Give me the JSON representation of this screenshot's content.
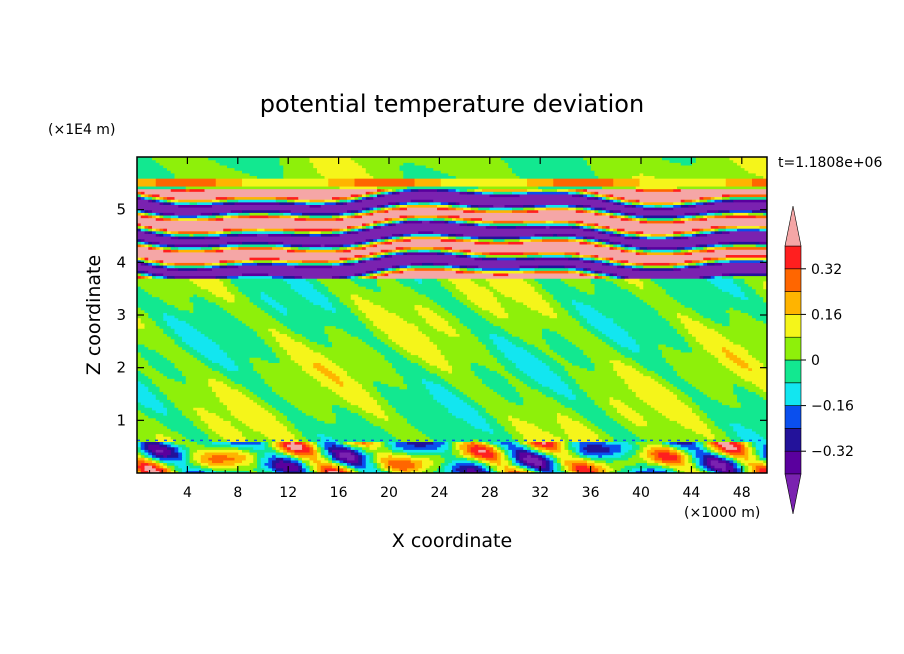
{
  "chart_data": {
    "type": "heatmap",
    "title": "potential temperature deviation",
    "xlabel": "X coordinate",
    "ylabel": "Z coordinate",
    "x_unit": "(×1000 m)",
    "y_unit": "(×1E4 m)",
    "time_label": "t=1.1808e+06",
    "xlim": [
      0,
      50
    ],
    "ylim": [
      0,
      6
    ],
    "x_ticks": [
      "4",
      "8",
      "12",
      "16",
      "20",
      "24",
      "28",
      "32",
      "36",
      "40",
      "44",
      "48"
    ],
    "y_ticks": [
      "1",
      "2",
      "3",
      "4",
      "5"
    ],
    "colorbar": {
      "levels": [
        -0.4,
        -0.32,
        -0.24,
        -0.16,
        -0.08,
        0,
        0.08,
        0.16,
        0.24,
        0.32,
        0.4
      ],
      "tick_labels": [
        "0.32",
        "0.16",
        "0",
        "−0.16",
        "−0.32"
      ],
      "tick_values": [
        0.32,
        0.16,
        0,
        -0.16,
        -0.32
      ],
      "colors": [
        "#5a009e",
        "#23129a",
        "#0a4fee",
        "#12e6f0",
        "#12e890",
        "#8ef00a",
        "#f5f51a",
        "#ffb400",
        "#ff6600",
        "#ff1f1f"
      ],
      "over_color": "#f5a6a6",
      "under_color": "#7a22b0"
    },
    "bands": [
      {
        "range": [
          0,
          0.62
        ],
        "description": "mixed layer, values -0.4 to 0.4"
      },
      {
        "range": [
          0.62,
          3.7
        ],
        "description": "mostly -0.08 to 0.08 (green shades)"
      },
      {
        "range": [
          3.7,
          5.4
        ],
        "description": "alternating strongly positive (>0.4) and strongly negative (<-0.4) layers"
      },
      {
        "range": [
          5.4,
          6.0
        ],
        "description": "mostly near 0 with small positive patches"
      }
    ]
  }
}
